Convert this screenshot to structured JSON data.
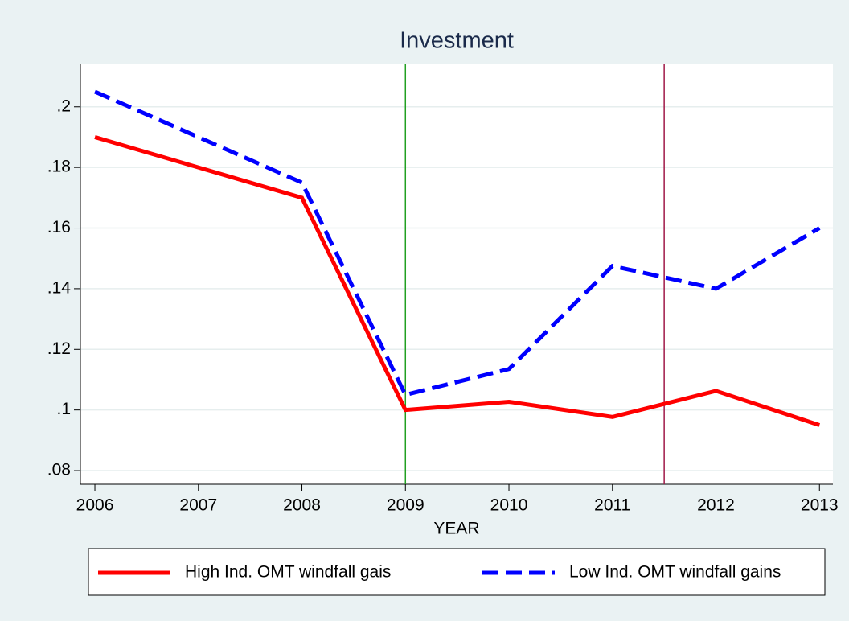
{
  "chart_data": {
    "type": "line",
    "title": "Investment",
    "x_label": "YEAR",
    "series": [
      {
        "name": "High Ind. OMT windfall gais",
        "color": "#ff0000",
        "dash": false,
        "x": [
          2006,
          2008,
          2009,
          2010,
          2011,
          2012,
          2013
        ],
        "values": [
          0.19,
          0.17,
          0.1,
          0.1027,
          0.0977,
          0.1063,
          0.095
        ]
      },
      {
        "name": "Low Ind. OMT windfall gains",
        "color": "#0000ff",
        "dash": true,
        "x": [
          2006,
          2008,
          2009,
          2010,
          2011,
          2012,
          2013
        ],
        "values": [
          0.205,
          0.175,
          0.105,
          0.1135,
          0.1475,
          0.14,
          0.16
        ]
      }
    ],
    "vlines": [
      {
        "x": 2009,
        "color": "#22a022"
      },
      {
        "x": 2011.5,
        "color": "#a01848"
      }
    ],
    "xlim": [
      2005.86,
      2013.13
    ],
    "xticks": [
      2006,
      2007,
      2008,
      2009,
      2010,
      2011,
      2012,
      2013
    ],
    "ylim": [
      0.0755,
      0.214
    ],
    "yticks": [
      {
        "value": 0.08,
        "label": ".08"
      },
      {
        "value": 0.1,
        "label": ".1"
      },
      {
        "value": 0.12,
        "label": ".12"
      },
      {
        "value": 0.14,
        "label": ".14"
      },
      {
        "value": 0.16,
        "label": ".16"
      },
      {
        "value": 0.18,
        "label": ".18"
      },
      {
        "value": 0.2,
        "label": ".2"
      }
    ],
    "grid": true,
    "legend": "bottom"
  }
}
